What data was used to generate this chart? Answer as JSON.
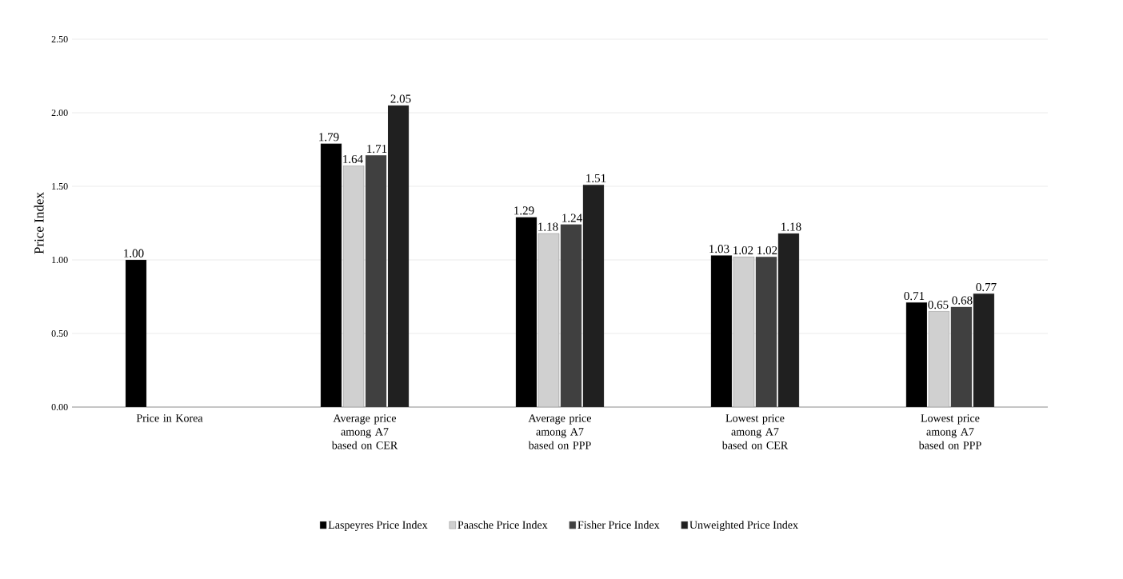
{
  "chart_data": {
    "type": "bar",
    "ylabel": "Price Index",
    "categories": [
      "Price in Korea",
      "Average price among A7 based on CER",
      "Average price among A7 based on PPP",
      "Lowest price among A7 based on CER",
      "Lowest price among A7 based on PPP"
    ],
    "series": [
      {
        "name": "Laspeyres Price Index",
        "color": "#000000",
        "values": [
          1.0,
          1.79,
          1.29,
          1.03,
          0.71
        ],
        "value_labels": [
          "1.00",
          "1.79",
          "1.29",
          "1.03",
          "0.71"
        ]
      },
      {
        "name": "Paasche Price Index",
        "color": "#d0d0d0",
        "values": [
          null,
          1.64,
          1.18,
          1.02,
          0.65
        ],
        "value_labels": [
          null,
          "1.64",
          "1.18",
          "1.02",
          "0.65"
        ]
      },
      {
        "name": "Fisher Price Index",
        "color": "#404040",
        "values": [
          null,
          1.71,
          1.24,
          1.02,
          0.68
        ],
        "value_labels": [
          null,
          "1.71",
          "1.24",
          "1.02",
          "0.68"
        ]
      },
      {
        "name": "Unweighted Price Index",
        "color": "#202020",
        "values": [
          null,
          2.05,
          1.51,
          1.18,
          0.77
        ],
        "value_labels": [
          null,
          "2.05",
          "1.51",
          "1.18",
          "0.77"
        ]
      }
    ],
    "ylim": [
      0,
      2.5
    ],
    "yticks": [
      {
        "value": 0,
        "label": "0.00"
      },
      {
        "value": 0.5,
        "label": "0.50"
      },
      {
        "value": 1,
        "label": "1.00"
      },
      {
        "value": 1.5,
        "label": "1.50"
      },
      {
        "value": 2,
        "label": "2.00"
      },
      {
        "value": 2.5,
        "label": "2.50"
      }
    ],
    "grid": "y",
    "legend": "bottom"
  }
}
